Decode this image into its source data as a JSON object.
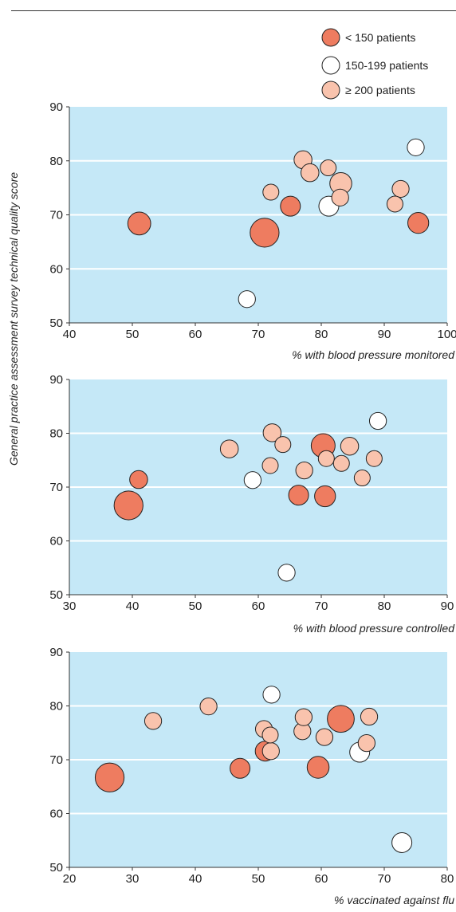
{
  "chart_data": {
    "type": "scatter",
    "ylabel": "General practice assessment survey technical quality score",
    "legend": {
      "placement": "top-right",
      "entries": [
        {
          "label": "< 150 patients",
          "color": "#ee7c60"
        },
        {
          "label": "150-199 patients",
          "color": "#ffffff"
        },
        {
          "label": "≥ 200 patients",
          "color": "#f9c3ad"
        }
      ]
    },
    "colors": {
      "panel_bg": "#c5e8f7",
      "grid": "#ffffff",
      "outline": "#222222"
    },
    "panels": [
      {
        "xlabel": "% with blood pressure monitored",
        "xlim": [
          40,
          100
        ],
        "ylim": [
          50,
          90
        ],
        "xticks": [
          40,
          50,
          60,
          70,
          80,
          90,
          100
        ],
        "yticks": [
          50,
          60,
          70,
          80,
          90
        ],
        "grid": true,
        "points": [
          {
            "x": 51.1,
            "y": 68.4,
            "group": 0,
            "size": 1.15
          },
          {
            "x": 71.0,
            "y": 66.7,
            "group": 0,
            "size": 1.45
          },
          {
            "x": 75.1,
            "y": 71.6,
            "group": 0,
            "size": 1.0
          },
          {
            "x": 95.4,
            "y": 68.5,
            "group": 0,
            "size": 1.05
          },
          {
            "x": 68.2,
            "y": 54.4,
            "group": 1,
            "size": 0.85
          },
          {
            "x": 81.2,
            "y": 71.6,
            "group": 1,
            "size": 1.0
          },
          {
            "x": 95.0,
            "y": 82.5,
            "group": 1,
            "size": 0.85
          },
          {
            "x": 72.0,
            "y": 74.2,
            "group": 2,
            "size": 0.8
          },
          {
            "x": 77.1,
            "y": 80.2,
            "group": 2,
            "size": 0.9
          },
          {
            "x": 78.2,
            "y": 77.8,
            "group": 2,
            "size": 0.9
          },
          {
            "x": 81.1,
            "y": 78.7,
            "group": 2,
            "size": 0.8
          },
          {
            "x": 83.1,
            "y": 75.8,
            "group": 2,
            "size": 1.1
          },
          {
            "x": 83.0,
            "y": 73.2,
            "group": 2,
            "size": 0.85
          },
          {
            "x": 92.6,
            "y": 74.8,
            "group": 2,
            "size": 0.85
          },
          {
            "x": 91.7,
            "y": 72.0,
            "group": 2,
            "size": 0.8
          }
        ]
      },
      {
        "xlabel": "% with blood pressure controlled",
        "xlim": [
          30,
          90
        ],
        "ylim": [
          50,
          90
        ],
        "xticks": [
          30,
          40,
          50,
          60,
          70,
          80,
          90
        ],
        "yticks": [
          50,
          60,
          70,
          80,
          90
        ],
        "grid": true,
        "points": [
          {
            "x": 39.4,
            "y": 66.6,
            "group": 0,
            "size": 1.45
          },
          {
            "x": 41.0,
            "y": 71.4,
            "group": 0,
            "size": 0.9
          },
          {
            "x": 66.4,
            "y": 68.5,
            "group": 0,
            "size": 1.0
          },
          {
            "x": 70.6,
            "y": 68.3,
            "group": 0,
            "size": 1.05
          },
          {
            "x": 70.3,
            "y": 77.7,
            "group": 0,
            "size": 1.2
          },
          {
            "x": 59.1,
            "y": 71.3,
            "group": 1,
            "size": 0.85
          },
          {
            "x": 64.5,
            "y": 54.1,
            "group": 1,
            "size": 0.85
          },
          {
            "x": 79.0,
            "y": 82.3,
            "group": 1,
            "size": 0.85
          },
          {
            "x": 55.4,
            "y": 77.1,
            "group": 2,
            "size": 0.9
          },
          {
            "x": 62.2,
            "y": 80.1,
            "group": 2,
            "size": 0.9
          },
          {
            "x": 61.9,
            "y": 74.0,
            "group": 2,
            "size": 0.8
          },
          {
            "x": 63.9,
            "y": 77.9,
            "group": 2,
            "size": 0.8
          },
          {
            "x": 67.3,
            "y": 73.1,
            "group": 2,
            "size": 0.85
          },
          {
            "x": 70.8,
            "y": 75.3,
            "group": 2,
            "size": 0.8
          },
          {
            "x": 73.2,
            "y": 74.4,
            "group": 2,
            "size": 0.8
          },
          {
            "x": 74.5,
            "y": 77.6,
            "group": 2,
            "size": 0.9
          },
          {
            "x": 76.5,
            "y": 71.7,
            "group": 2,
            "size": 0.8
          },
          {
            "x": 78.4,
            "y": 75.3,
            "group": 2,
            "size": 0.8
          }
        ]
      },
      {
        "xlabel": "% vaccinated against flu",
        "xlim": [
          20,
          80
        ],
        "ylim": [
          50,
          90
        ],
        "xticks": [
          20,
          30,
          40,
          50,
          60,
          70,
          80
        ],
        "yticks": [
          50,
          60,
          70,
          80,
          90
        ],
        "grid": true,
        "points": [
          {
            "x": 26.4,
            "y": 66.7,
            "group": 0,
            "size": 1.45
          },
          {
            "x": 47.1,
            "y": 68.4,
            "group": 0,
            "size": 1.0
          },
          {
            "x": 51.1,
            "y": 71.6,
            "group": 0,
            "size": 1.0
          },
          {
            "x": 59.5,
            "y": 68.6,
            "group": 0,
            "size": 1.1
          },
          {
            "x": 63.1,
            "y": 77.6,
            "group": 0,
            "size": 1.35
          },
          {
            "x": 52.1,
            "y": 82.1,
            "group": 1,
            "size": 0.85
          },
          {
            "x": 66.1,
            "y": 71.4,
            "group": 1,
            "size": 1.0
          },
          {
            "x": 72.8,
            "y": 54.6,
            "group": 1,
            "size": 1.0
          },
          {
            "x": 33.3,
            "y": 77.2,
            "group": 2,
            "size": 0.85
          },
          {
            "x": 42.1,
            "y": 79.9,
            "group": 2,
            "size": 0.85
          },
          {
            "x": 50.9,
            "y": 75.7,
            "group": 2,
            "size": 0.85
          },
          {
            "x": 51.9,
            "y": 74.6,
            "group": 2,
            "size": 0.8
          },
          {
            "x": 52.0,
            "y": 71.6,
            "group": 2,
            "size": 0.85
          },
          {
            "x": 57.0,
            "y": 75.3,
            "group": 2,
            "size": 0.85
          },
          {
            "x": 57.2,
            "y": 77.9,
            "group": 2,
            "size": 0.85
          },
          {
            "x": 60.5,
            "y": 74.2,
            "group": 2,
            "size": 0.85
          },
          {
            "x": 67.2,
            "y": 73.1,
            "group": 2,
            "size": 0.85
          },
          {
            "x": 67.6,
            "y": 78.0,
            "group": 2,
            "size": 0.85
          }
        ]
      }
    ]
  }
}
